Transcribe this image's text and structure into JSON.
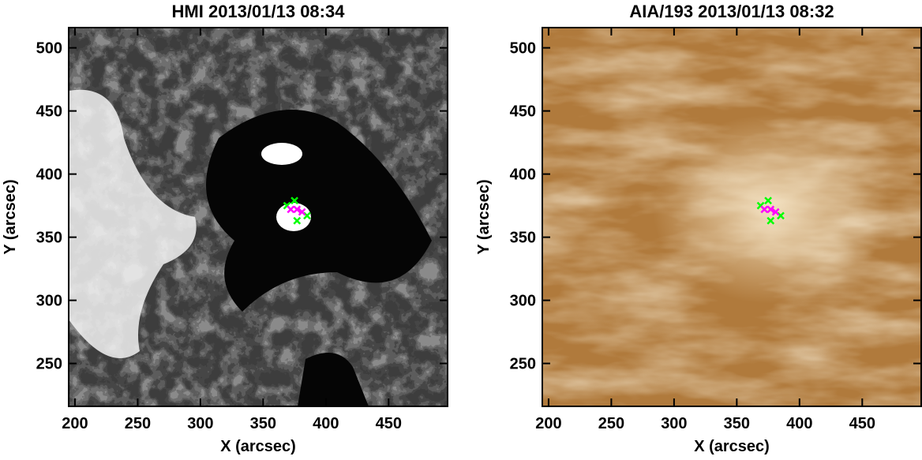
{
  "chart_data": [
    {
      "type": "scatter",
      "title": "HMI 2013/01/13 08:34",
      "xlabel": "X (arcsec)",
      "ylabel": "Y (arcsec)",
      "xlim": [
        195,
        497
      ],
      "ylim": [
        216,
        516
      ],
      "xticks": [
        200,
        250,
        300,
        350,
        400,
        450
      ],
      "yticks": [
        250,
        300,
        350,
        400,
        450,
        500
      ],
      "background": "magnetogram",
      "series": [
        {
          "color": "#00ff00",
          "x": [
            369,
            375,
            385,
            377
          ],
          "values": [
            375,
            379,
            367,
            363
          ]
        },
        {
          "color": "#ff00ff",
          "x": [
            372,
            377,
            381
          ],
          "values": [
            372,
            372,
            370
          ]
        }
      ]
    },
    {
      "type": "scatter",
      "title": "AIA/193 2013/01/13 08:32",
      "xlabel": "X (arcsec)",
      "ylabel": "Y (arcsec)",
      "xlim": [
        195,
        497
      ],
      "ylim": [
        216,
        516
      ],
      "xticks": [
        200,
        250,
        300,
        350,
        400,
        450
      ],
      "yticks": [
        250,
        300,
        350,
        400,
        450,
        500
      ],
      "background": "corona",
      "series": [
        {
          "color": "#00ff00",
          "x": [
            369,
            375,
            385,
            377
          ],
          "values": [
            375,
            379,
            367,
            363
          ]
        },
        {
          "color": "#ff00ff",
          "x": [
            372,
            377,
            381
          ],
          "values": [
            372,
            372,
            370
          ]
        }
      ]
    }
  ]
}
